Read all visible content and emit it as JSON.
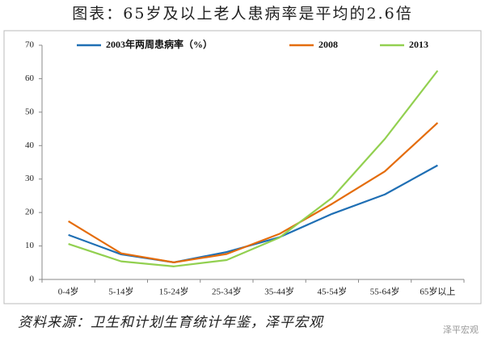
{
  "chart_data": {
    "type": "line",
    "title": "图表：65岁及以上老人患病率是平均的2.6倍",
    "categories": [
      "0-4岁",
      "5-14岁",
      "15-24岁",
      "25-34岁",
      "35-44岁",
      "45-54岁",
      "55-64岁",
      "65岁以上"
    ],
    "series": [
      {
        "name": "2003年两周患病率（%）",
        "color": "#1f6fb4",
        "values": [
          13.3,
          7.5,
          5.1,
          8.2,
          12.6,
          19.6,
          25.4,
          34.1
        ]
      },
      {
        "name": "2008",
        "color": "#e46c0a",
        "values": [
          17.4,
          7.8,
          5.1,
          7.6,
          13.6,
          22.6,
          32.3,
          46.8
        ]
      },
      {
        "name": "2013",
        "color": "#92d050",
        "values": [
          10.6,
          5.4,
          3.9,
          5.8,
          12.5,
          24.4,
          42.0,
          62.4
        ]
      }
    ],
    "ylim": [
      0,
      70
    ],
    "yticks": [
      0,
      10,
      20,
      30,
      40,
      50,
      60,
      70
    ],
    "grid": false,
    "legend": "top",
    "source": "资料来源：卫生和计划生育统计年鉴，泽平宏观",
    "watermark": "泽平宏观"
  }
}
